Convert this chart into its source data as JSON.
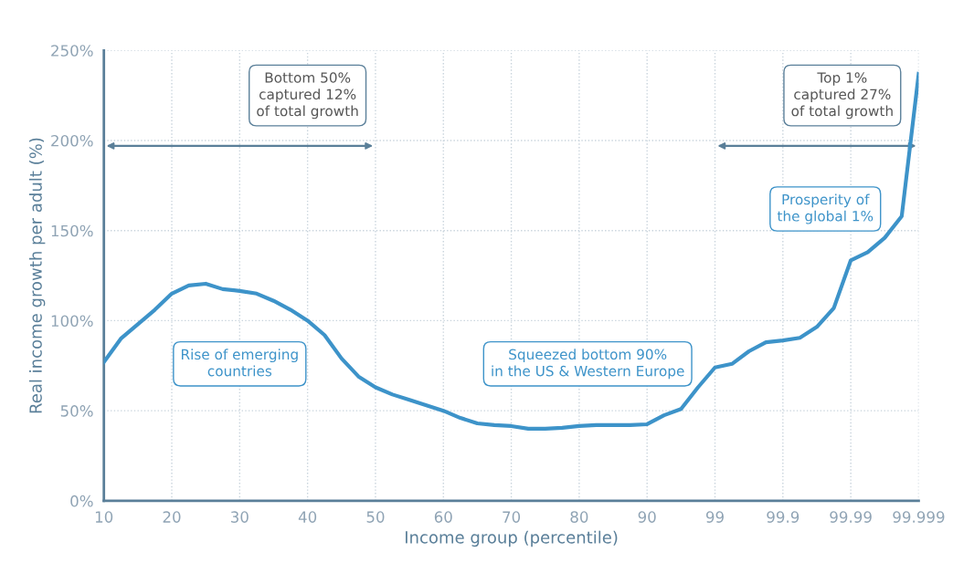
{
  "chart_data": {
    "type": "line",
    "xlabel": "Income group (percentile)",
    "ylabel": "Real income growth per adult (%)",
    "categories": [
      "10",
      null,
      null,
      null,
      "20",
      null,
      null,
      null,
      "30",
      null,
      null,
      null,
      "40",
      null,
      null,
      null,
      "50",
      null,
      null,
      null,
      "60",
      null,
      null,
      null,
      "70",
      null,
      null,
      null,
      "80",
      null,
      null,
      null,
      "90",
      null,
      null,
      null,
      "99",
      null,
      null,
      null,
      "99.9",
      null,
      null,
      null,
      "99.99",
      null,
      null,
      null,
      "99.999"
    ],
    "series": [
      {
        "color": "#3d93c9",
        "values": [
          77,
          90,
          98,
          106,
          115,
          119.5,
          120.5,
          117.5,
          116.5,
          115,
          111,
          106,
          100,
          92,
          79,
          69,
          63,
          59,
          56,
          53,
          50,
          46,
          43,
          42,
          41.5,
          40,
          40,
          40.5,
          41.5,
          42,
          42,
          42,
          42.5,
          47.5,
          51,
          63,
          74,
          76,
          83,
          88,
          89,
          90.5,
          96.5,
          107,
          133.5,
          138,
          146,
          158,
          237
        ]
      }
    ],
    "ylim": [
      0,
      250
    ],
    "yticks": [
      {
        "value": 0,
        "label": "0%"
      },
      {
        "value": 50,
        "label": "50%"
      },
      {
        "value": 100,
        "label": "100%"
      },
      {
        "value": 150,
        "label": "150%"
      },
      {
        "value": 200,
        "label": "200%"
      },
      {
        "value": 250,
        "label": "250%"
      }
    ],
    "grid": true,
    "marker": "none",
    "line_style": "solid",
    "annotations": [
      "Bottom 50%\ncaptured 12%\nof total growth",
      "Top 1%\ncaptured 27%\nof total growth",
      "Rise of emerging\ncountries",
      "Squeezed bottom 90%\nin the US & Western Europe",
      "Prosperity of\nthe global 1%"
    ]
  }
}
